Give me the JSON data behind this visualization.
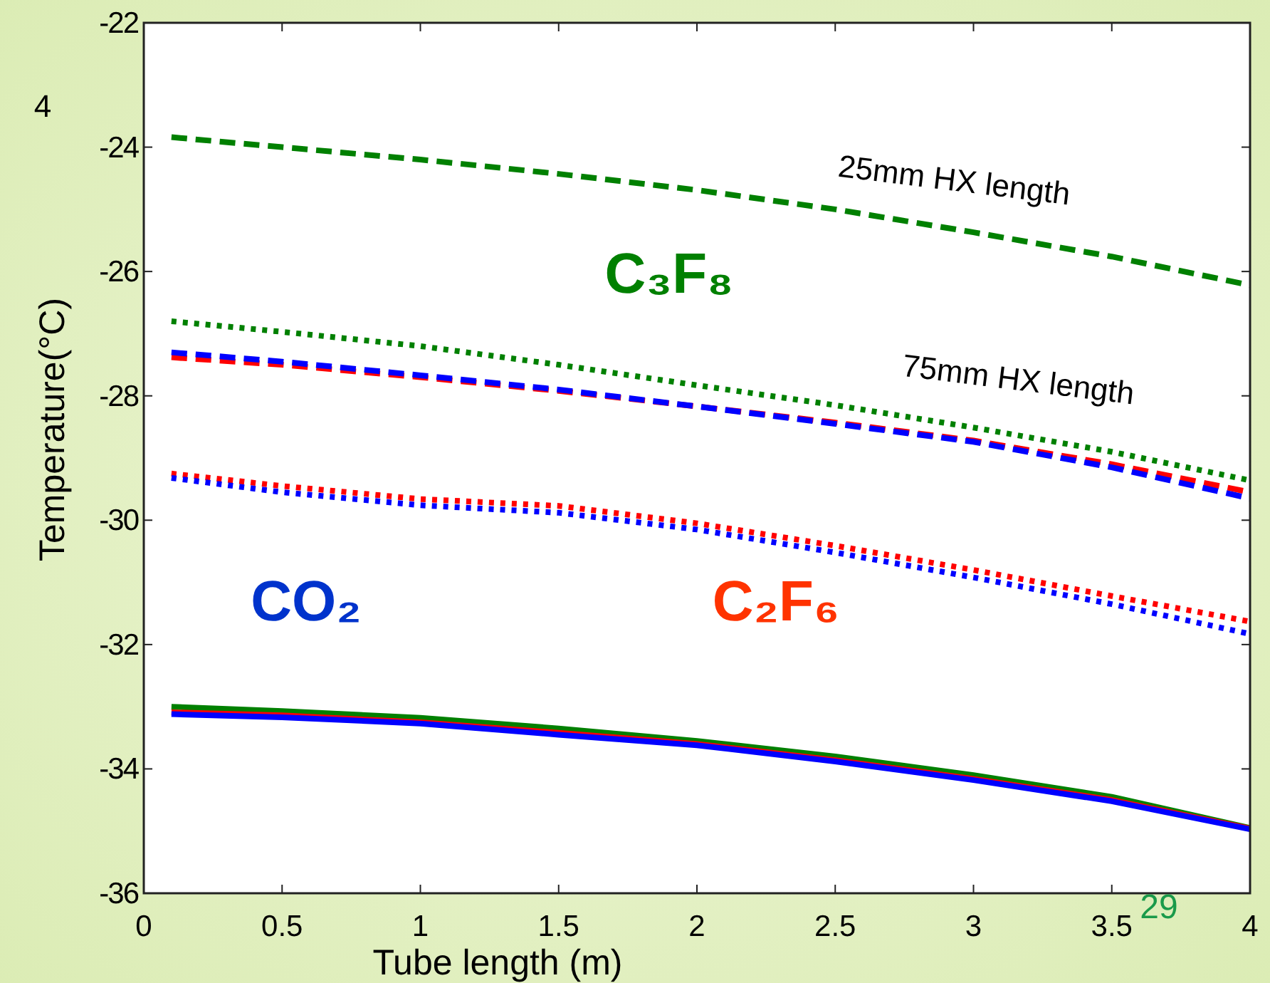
{
  "chart_data": {
    "type": "line",
    "xlabel": "Tube length (m)",
    "ylabel": "Temperature(°C)",
    "x": [
      0.1,
      0.5,
      1,
      1.5,
      2,
      2.5,
      3,
      3.5,
      4
    ],
    "xlim": [
      0,
      4
    ],
    "xticks": [
      0,
      0.5,
      1,
      1.5,
      2,
      2.5,
      3,
      3.5,
      4
    ],
    "ylim": [
      -36,
      -22
    ],
    "yticks": [
      -36,
      -34,
      -32,
      -30,
      -28,
      -26,
      -24,
      -22
    ],
    "grid": false,
    "series": [
      {
        "color": "#008000",
        "line_style": "dashed",
        "values": [
          -23.84,
          -24.0,
          -24.2,
          -24.43,
          -24.69,
          -25.0,
          -25.37,
          -25.76,
          -26.22
        ]
      },
      {
        "color": "#008000",
        "line_style": "dotted",
        "values": [
          -26.8,
          -26.97,
          -27.2,
          -27.5,
          -27.83,
          -28.15,
          -28.51,
          -28.9,
          -29.36
        ]
      },
      {
        "color": "#ff0000",
        "line_style": "dashed",
        "values": [
          -27.38,
          -27.5,
          -27.7,
          -27.92,
          -28.17,
          -28.43,
          -28.72,
          -29.1,
          -29.55
        ]
      },
      {
        "color": "#0000ff",
        "line_style": "dashed",
        "values": [
          -27.3,
          -27.45,
          -27.67,
          -27.9,
          -28.17,
          -28.45,
          -28.74,
          -29.15,
          -29.65
        ]
      },
      {
        "color": "#ff0000",
        "line_style": "dotted",
        "values": [
          -29.25,
          -29.45,
          -29.66,
          -29.77,
          -30.05,
          -30.41,
          -30.8,
          -31.22,
          -31.63
        ]
      },
      {
        "color": "#0000ff",
        "line_style": "dotted",
        "values": [
          -29.32,
          -29.55,
          -29.76,
          -29.88,
          -30.15,
          -30.52,
          -30.92,
          -31.35,
          -31.83
        ]
      },
      {
        "color": "#008000",
        "line_style": "solid",
        "values": [
          -33.0,
          -33.07,
          -33.18,
          -33.35,
          -33.55,
          -33.8,
          -34.1,
          -34.45,
          -34.95
        ]
      },
      {
        "color": "#ff0000",
        "line_style": "solid",
        "values": [
          -33.09,
          -33.14,
          -33.25,
          -33.42,
          -33.6,
          -33.86,
          -34.16,
          -34.5,
          -34.96
        ]
      },
      {
        "color": "#0000ff",
        "line_style": "solid",
        "values": [
          -33.12,
          -33.17,
          -33.27,
          -33.45,
          -33.62,
          -33.88,
          -34.18,
          -34.52,
          -34.97
        ]
      }
    ],
    "annotations": [
      "25mm HX length",
      "75mm HX length",
      "C₃F₈",
      "CO₂",
      "C₂F₆",
      "29",
      "4"
    ]
  }
}
